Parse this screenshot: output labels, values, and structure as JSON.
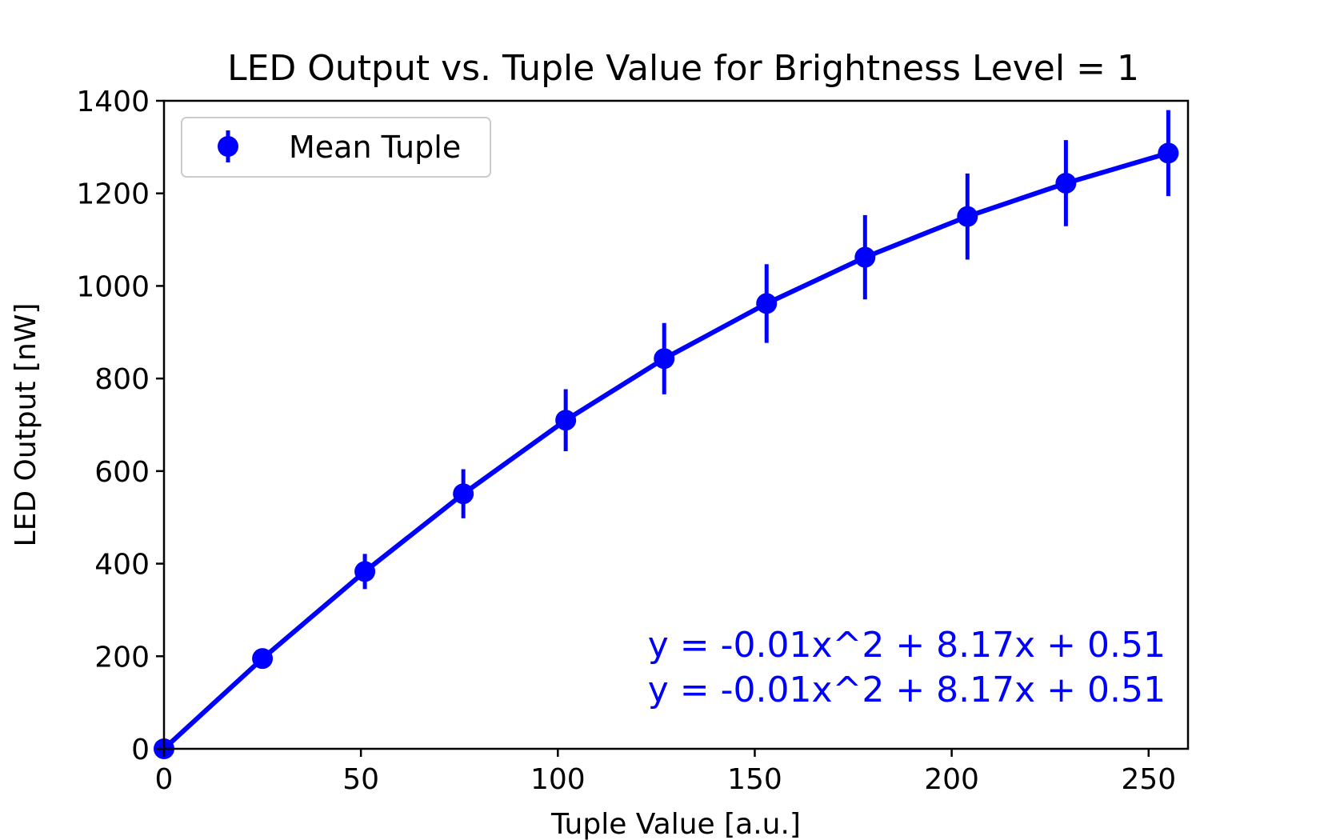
{
  "colors": {
    "series": "#0000ff",
    "axes": "#000000",
    "background": "#ffffff",
    "legend_border": "#cccccc"
  },
  "chart_data": {
    "type": "line",
    "title": "LED Output vs. Tuple Value for Brightness Level = 1",
    "xlabel": "Tuple Value [a.u.]",
    "ylabel": "LED Output [nW]",
    "xlim": [
      0,
      260
    ],
    "ylim": [
      0,
      1400
    ],
    "xticks": [
      0,
      50,
      100,
      150,
      200,
      250
    ],
    "xtick_labels": [
      "0",
      "50",
      "100",
      "150",
      "200",
      "250"
    ],
    "yticks": [
      0,
      200,
      400,
      600,
      800,
      1000,
      1200,
      1400
    ],
    "ytick_labels": [
      "0",
      "200",
      "400",
      "600",
      "800",
      "1000",
      "1200",
      "1400"
    ],
    "grid": false,
    "legend_position": "top-left",
    "series": [
      {
        "name": "Mean Tuple",
        "marker": "circle",
        "error_bars": true,
        "x": [
          0,
          25,
          51,
          76,
          102,
          127,
          153,
          178,
          204,
          229,
          255
        ],
        "y": [
          0,
          195,
          383,
          551,
          710,
          843,
          962,
          1062,
          1150,
          1222,
          1287
        ],
        "yerr": [
          2,
          8,
          38,
          53,
          67,
          77,
          85,
          91,
          93,
          93,
          93
        ]
      }
    ],
    "annotations": [
      "y = -0.01x^2 + 8.17x + 0.51",
      "y = -0.01x^2 + 8.17x + 0.51"
    ]
  }
}
